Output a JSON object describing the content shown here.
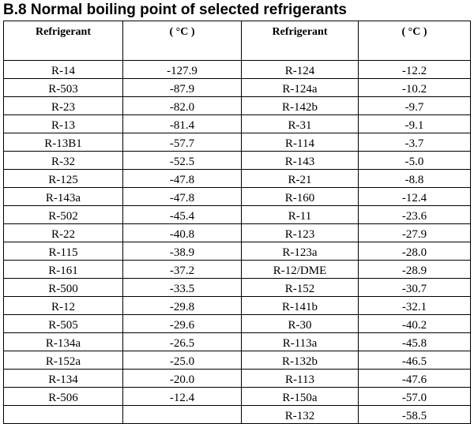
{
  "title": "B.8  Normal boiling point of selected refrigerants",
  "headers": [
    "Refrigerant",
    "( °C )",
    "Refrigerant",
    "( °C )"
  ],
  "rows": [
    [
      "R-14",
      "-127.9",
      "R-124",
      "-12.2"
    ],
    [
      "R-503",
      "-87.9",
      "R-124a",
      "-10.2"
    ],
    [
      "R-23",
      "-82.0",
      "R-142b",
      "-9.7"
    ],
    [
      "R-13",
      "-81.4",
      "R-31",
      "-9.1"
    ],
    [
      "R-13B1",
      "-57.7",
      "R-114",
      "-3.7"
    ],
    [
      "R-32",
      "-52.5",
      "R-143",
      "-5.0"
    ],
    [
      "R-125",
      "-47.8",
      "R-21",
      "-8.8"
    ],
    [
      "R-143a",
      "-47.8",
      "R-160",
      "-12.4"
    ],
    [
      "R-502",
      "-45.4",
      "R-11",
      "-23.6"
    ],
    [
      "R-22",
      "-40.8",
      "R-123",
      "-27.9"
    ],
    [
      "R-115",
      "-38.9",
      "R-123a",
      "-28.0"
    ],
    [
      "R-161",
      "-37.2",
      "R-12/DME",
      "-28.9"
    ],
    [
      "R-500",
      "-33.5",
      "R-152",
      "-30.7"
    ],
    [
      "R-12",
      "-29.8",
      "R-141b",
      "-32.1"
    ],
    [
      "R-505",
      "-29.6",
      "R-30",
      "-40.2"
    ],
    [
      "R-134a",
      "-26.5",
      "R-113a",
      "-45.8"
    ],
    [
      "R-152a",
      "-25.0",
      "R-132b",
      "-46.5"
    ],
    [
      "R-134",
      "-20.0",
      "R-113",
      "-47.6"
    ],
    [
      "R-506",
      "-12.4",
      "R-150a",
      "-57.0"
    ],
    [
      "",
      "",
      "R-132",
      "-58.5"
    ]
  ]
}
